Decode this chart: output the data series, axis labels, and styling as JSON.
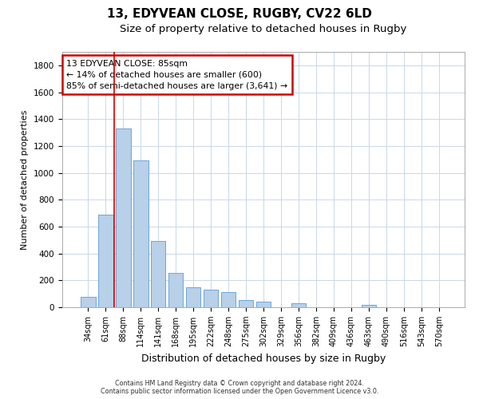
{
  "title1": "13, EDYVEAN CLOSE, RUGBY, CV22 6LD",
  "title2": "Size of property relative to detached houses in Rugby",
  "xlabel": "Distribution of detached houses by size in Rugby",
  "ylabel": "Number of detached properties",
  "categories": [
    "34sqm",
    "61sqm",
    "88sqm",
    "114sqm",
    "141sqm",
    "168sqm",
    "195sqm",
    "222sqm",
    "248sqm",
    "275sqm",
    "302sqm",
    "329sqm",
    "356sqm",
    "382sqm",
    "409sqm",
    "436sqm",
    "463sqm",
    "490sqm",
    "516sqm",
    "543sqm",
    "570sqm"
  ],
  "values": [
    75,
    690,
    1330,
    1090,
    490,
    255,
    150,
    130,
    110,
    55,
    40,
    0,
    30,
    0,
    0,
    0,
    20,
    0,
    0,
    0,
    0
  ],
  "bar_color": "#b8d0e8",
  "bar_edge_color": "#5b9bd5",
  "annotation_line1": "13 EDYVEAN CLOSE: 85sqm",
  "annotation_line2": "← 14% of detached houses are smaller (600)",
  "annotation_line3": "85% of semi-detached houses are larger (3,641) →",
  "annotation_box_color": "#ffffff",
  "annotation_box_edge": "#cc0000",
  "vline_color": "#cc0000",
  "vline_x": 1.5,
  "ylim": [
    0,
    1900
  ],
  "yticks": [
    0,
    200,
    400,
    600,
    800,
    1000,
    1200,
    1400,
    1600,
    1800
  ],
  "footer1": "Contains HM Land Registry data © Crown copyright and database right 2024.",
  "footer2": "Contains public sector information licensed under the Open Government Licence v3.0.",
  "bg_color": "#ffffff",
  "grid_color": "#c8d8e8",
  "title1_fontsize": 11,
  "title2_fontsize": 9.5,
  "tick_fontsize": 7,
  "ylabel_fontsize": 8,
  "xlabel_fontsize": 9
}
